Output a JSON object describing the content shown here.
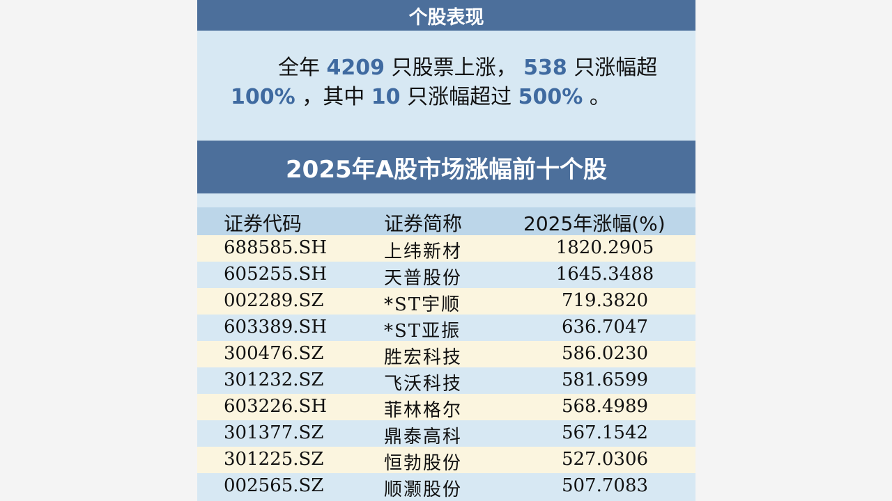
{
  "section_title": "个股表现",
  "summary": {
    "t1": "全年",
    "n1": "4209",
    "t2": "只股票上涨，",
    "n2": "538",
    "t3": "只涨幅超",
    "n3": "100%",
    "t4": "，其中",
    "n4": "10",
    "t5": "只涨幅超过",
    "n5": "500%",
    "t6": "。"
  },
  "table_title": "2025年A股市场涨幅前十个股",
  "columns": [
    "证券代码",
    "证券简称",
    "2025年涨幅(%)"
  ],
  "rows": [
    {
      "code": "688585.SH",
      "name": "上纬新材",
      "gain": "1820.2905"
    },
    {
      "code": "605255.SH",
      "name": "天普股份",
      "gain": "1645.3488"
    },
    {
      "code": "002289.SZ",
      "name": "*ST宇顺",
      "gain": "719.3820"
    },
    {
      "code": "603389.SH",
      "name": "*ST亚振",
      "gain": "636.7047"
    },
    {
      "code": "300476.SZ",
      "name": "胜宏科技",
      "gain": "586.0230"
    },
    {
      "code": "301232.SZ",
      "name": "飞沃科技",
      "gain": "581.6599"
    },
    {
      "code": "603226.SH",
      "name": "菲林格尔",
      "gain": "568.4989"
    },
    {
      "code": "301377.SZ",
      "name": "鼎泰高科",
      "gain": "567.1542"
    },
    {
      "code": "301225.SZ",
      "name": "恒勃股份",
      "gain": "527.0306"
    },
    {
      "code": "002565.SZ",
      "name": "顺灏股份",
      "gain": "507.7083"
    }
  ],
  "colors": {
    "header_bg": "#4c6f9b",
    "panel_bg": "#d7e8f3",
    "highlight_number": "#3f6aa0",
    "row_stripe": "#fbf5df"
  }
}
